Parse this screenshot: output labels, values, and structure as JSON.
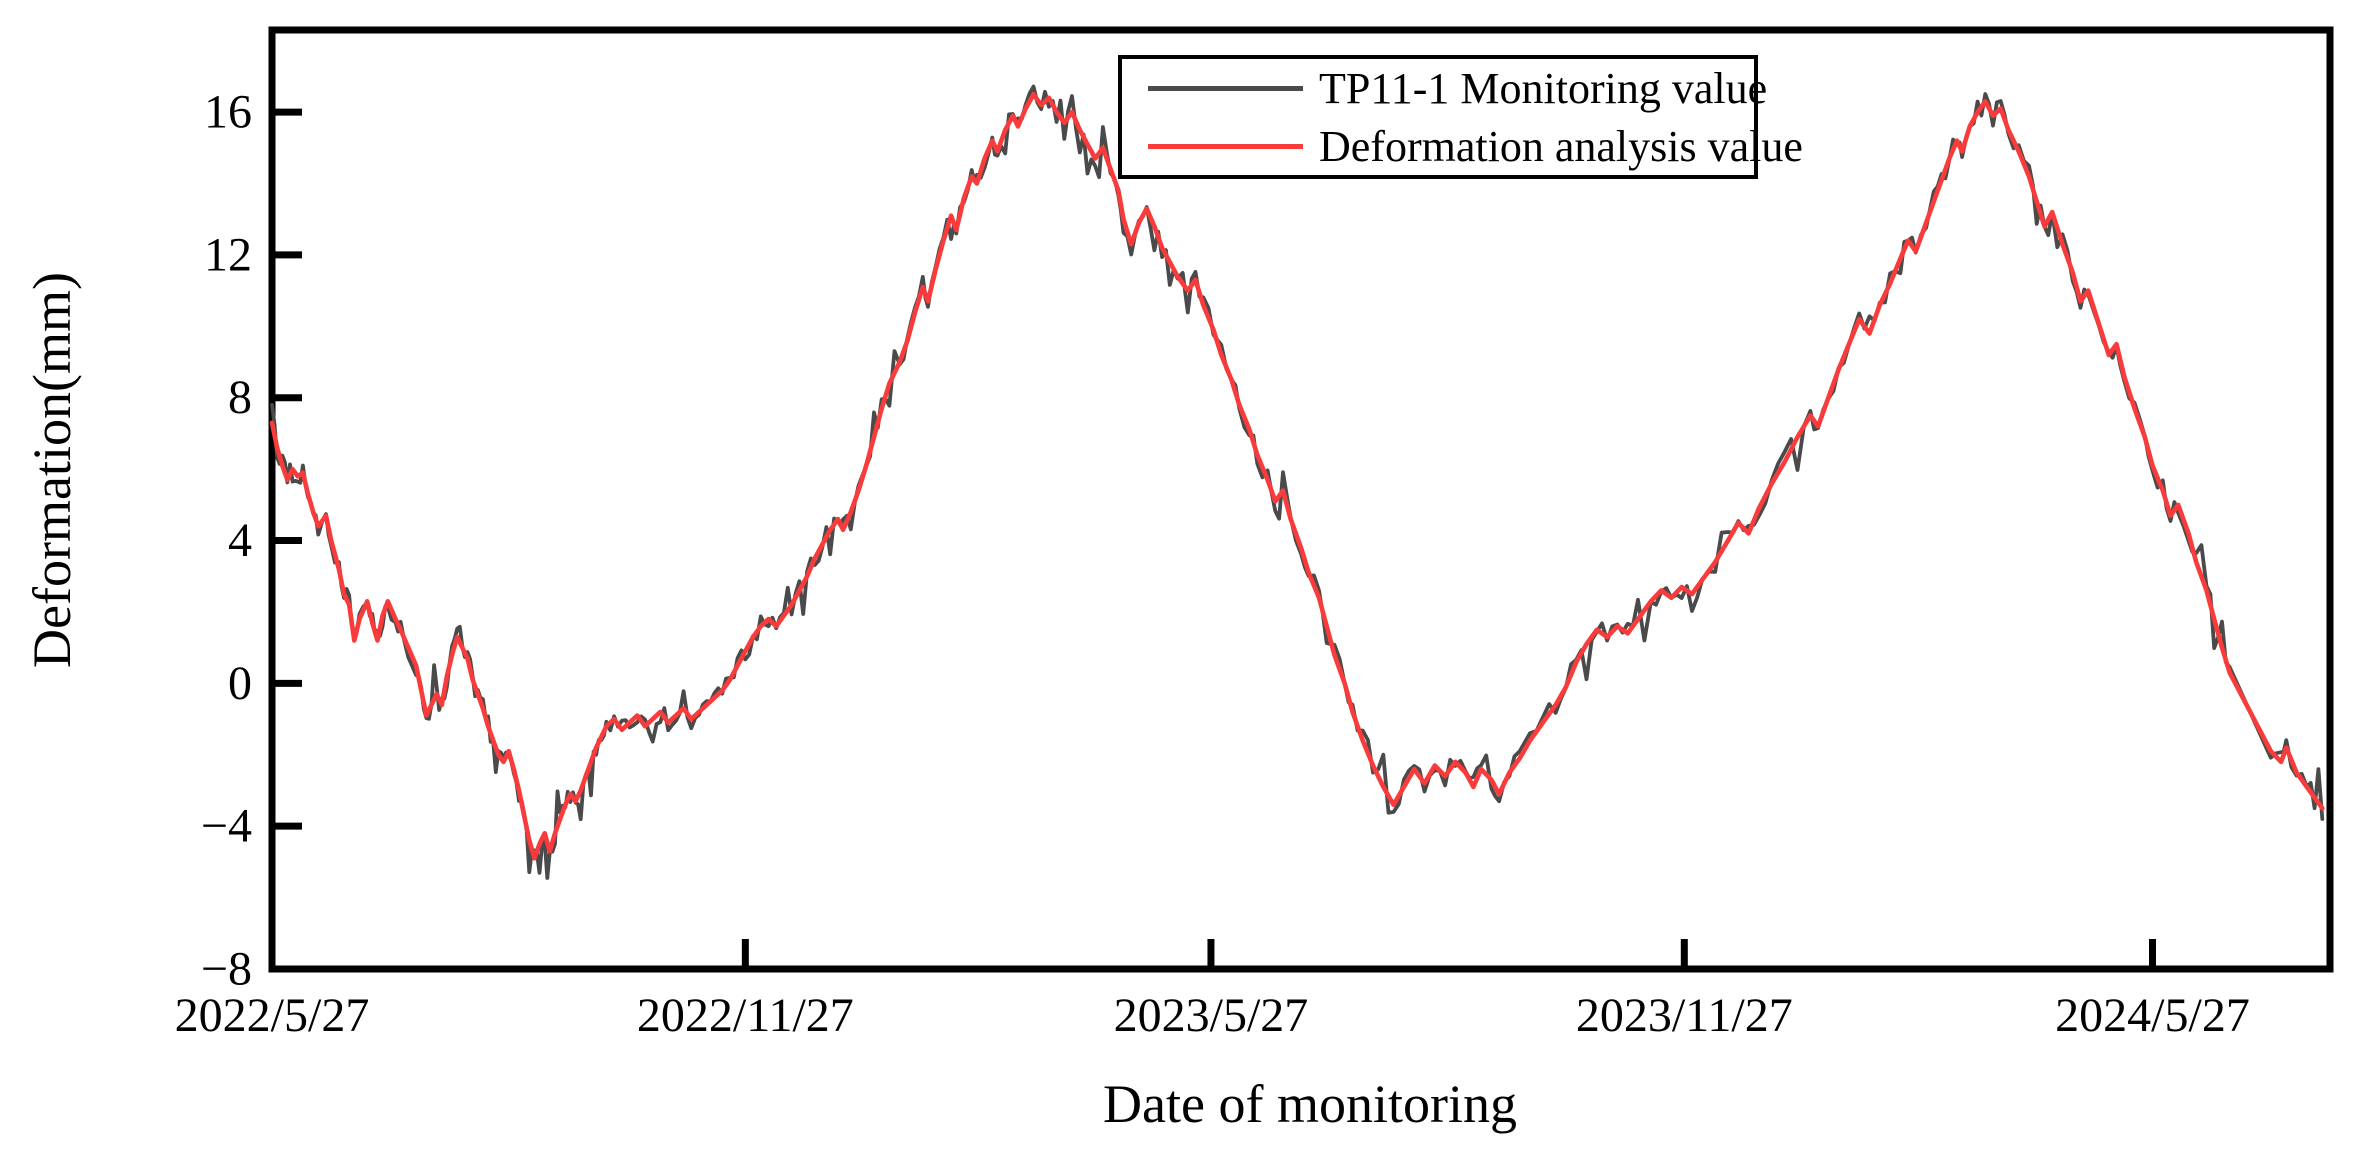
{
  "chart_data": {
    "type": "line",
    "title": "",
    "xlabel": "Date of monitoring",
    "ylabel": "Deformation(mm)",
    "grid": "off",
    "frame": "full-box",
    "x_axis": {
      "start_date": "2022/5/27",
      "tick_labels": [
        "2022/5/27",
        "2022/11/27",
        "2023/5/27",
        "2023/11/27",
        "2024/5/27"
      ],
      "tick_days": [
        0,
        184,
        365,
        549,
        731
      ],
      "domain_days": [
        0,
        800
      ]
    },
    "y_axis": {
      "tick_labels": [
        "16",
        "12",
        "8",
        "4",
        "0",
        "−4",
        "−8"
      ],
      "tick_values": [
        16,
        12,
        8,
        4,
        0,
        -4,
        -8
      ],
      "range": [
        -8,
        18.3
      ]
    },
    "legend": {
      "position": "top-center-inside",
      "entries": [
        {
          "label": "TP11-1 Monitoring value",
          "color": "#4a4a4a"
        },
        {
          "label": "Deformation analysis value",
          "color": "#f93b3b"
        }
      ]
    },
    "series": [
      {
        "name": "TP11-1 Monitoring value",
        "color": "#4a4a4a",
        "line_width": 3.8,
        "derived": {
          "from": "Deformation analysis value",
          "noise_amplitude_mm": 0.3,
          "spike_probability": 0.12,
          "spike_extra_mm": 0.55,
          "seed": 20220527,
          "upsample_max_gap_days": 5
        }
      },
      {
        "name": "Deformation analysis value",
        "color": "#f93b3b",
        "line_width": 4.6,
        "points": [
          [
            0,
            7.3
          ],
          [
            2,
            6.6
          ],
          [
            4,
            6.1
          ],
          [
            6,
            5.7
          ],
          [
            8,
            6.0
          ],
          [
            10,
            5.8
          ],
          [
            12,
            5.9
          ],
          [
            14,
            5.3
          ],
          [
            16,
            4.8
          ],
          [
            18,
            4.4
          ],
          [
            21,
            4.7
          ],
          [
            23,
            4.0
          ],
          [
            26,
            3.2
          ],
          [
            28,
            2.5
          ],
          [
            30,
            2.2
          ],
          [
            32,
            1.2
          ],
          [
            34,
            1.8
          ],
          [
            37,
            2.3
          ],
          [
            39,
            1.7
          ],
          [
            41,
            1.2
          ],
          [
            43,
            1.9
          ],
          [
            45,
            2.3
          ],
          [
            48,
            1.8
          ],
          [
            50,
            1.5
          ],
          [
            53,
            1.0
          ],
          [
            56,
            0.5
          ],
          [
            58,
            -0.2
          ],
          [
            60,
            -0.9
          ],
          [
            62,
            -0.6
          ],
          [
            64,
            -0.3
          ],
          [
            66,
            -0.6
          ],
          [
            68,
            0.2
          ],
          [
            70,
            0.8
          ],
          [
            72,
            1.3
          ],
          [
            74,
            1.0
          ],
          [
            76,
            0.7
          ],
          [
            78,
            0.1
          ],
          [
            80,
            -0.3
          ],
          [
            82,
            -0.7
          ],
          [
            84,
            -1.2
          ],
          [
            86,
            -1.6
          ],
          [
            88,
            -2.0
          ],
          [
            90,
            -2.2
          ],
          [
            92,
            -1.9
          ],
          [
            94,
            -2.4
          ],
          [
            96,
            -3.0
          ],
          [
            98,
            -3.7
          ],
          [
            100,
            -4.4
          ],
          [
            102,
            -4.9
          ],
          [
            104,
            -4.5
          ],
          [
            106,
            -4.2
          ],
          [
            108,
            -4.7
          ],
          [
            110,
            -4.2
          ],
          [
            112,
            -3.8
          ],
          [
            114,
            -3.4
          ],
          [
            116,
            -3.1
          ],
          [
            118,
            -3.3
          ],
          [
            120,
            -3.0
          ],
          [
            122,
            -2.6
          ],
          [
            124,
            -2.2
          ],
          [
            126,
            -1.8
          ],
          [
            128,
            -1.5
          ],
          [
            130,
            -1.2
          ],
          [
            133,
            -1.0
          ],
          [
            136,
            -1.3
          ],
          [
            139,
            -1.1
          ],
          [
            142,
            -0.9
          ],
          [
            145,
            -1.2
          ],
          [
            148,
            -1.0
          ],
          [
            151,
            -0.8
          ],
          [
            154,
            -1.1
          ],
          [
            157,
            -0.9
          ],
          [
            160,
            -0.7
          ],
          [
            163,
            -1.0
          ],
          [
            166,
            -0.8
          ],
          [
            169,
            -0.6
          ],
          [
            172,
            -0.4
          ],
          [
            175,
            -0.2
          ],
          [
            178,
            0.1
          ],
          [
            181,
            0.5
          ],
          [
            184,
            0.9
          ],
          [
            187,
            1.3
          ],
          [
            190,
            1.6
          ],
          [
            193,
            1.8
          ],
          [
            196,
            1.6
          ],
          [
            199,
            1.9
          ],
          [
            202,
            2.2
          ],
          [
            205,
            2.6
          ],
          [
            208,
            3.0
          ],
          [
            211,
            3.5
          ],
          [
            214,
            3.9
          ],
          [
            217,
            4.3
          ],
          [
            220,
            4.6
          ],
          [
            222,
            4.3
          ],
          [
            225,
            4.8
          ],
          [
            228,
            5.4
          ],
          [
            231,
            6.1
          ],
          [
            234,
            6.9
          ],
          [
            237,
            7.7
          ],
          [
            240,
            8.4
          ],
          [
            244,
            9.0
          ],
          [
            247,
            9.6
          ],
          [
            250,
            10.4
          ],
          [
            253,
            11.1
          ],
          [
            255,
            10.7
          ],
          [
            258,
            11.6
          ],
          [
            261,
            12.4
          ],
          [
            264,
            13.1
          ],
          [
            266,
            12.7
          ],
          [
            269,
            13.6
          ],
          [
            272,
            14.2
          ],
          [
            274,
            14.0
          ],
          [
            277,
            14.7
          ],
          [
            280,
            15.2
          ],
          [
            282,
            14.9
          ],
          [
            285,
            15.5
          ],
          [
            288,
            15.9
          ],
          [
            290,
            15.6
          ],
          [
            293,
            16.1
          ],
          [
            296,
            16.5
          ],
          [
            299,
            16.2
          ],
          [
            302,
            16.4
          ],
          [
            305,
            16.0
          ],
          [
            308,
            15.7
          ],
          [
            311,
            16.0
          ],
          [
            314,
            15.5
          ],
          [
            317,
            15.1
          ],
          [
            320,
            14.7
          ],
          [
            323,
            15.0
          ],
          [
            326,
            14.4
          ],
          [
            329,
            13.8
          ],
          [
            331,
            13.0
          ],
          [
            334,
            12.3
          ],
          [
            337,
            12.9
          ],
          [
            340,
            13.3
          ],
          [
            343,
            12.8
          ],
          [
            346,
            12.2
          ],
          [
            349,
            11.8
          ],
          [
            352,
            11.4
          ],
          [
            356,
            11.0
          ],
          [
            359,
            11.3
          ],
          [
            362,
            10.6
          ],
          [
            366,
            9.9
          ],
          [
            369,
            9.2
          ],
          [
            373,
            8.5
          ],
          [
            376,
            7.8
          ],
          [
            380,
            7.1
          ],
          [
            383,
            6.4
          ],
          [
            387,
            5.7
          ],
          [
            390,
            5.1
          ],
          [
            393,
            5.4
          ],
          [
            396,
            4.6
          ],
          [
            400,
            3.8
          ],
          [
            403,
            3.1
          ],
          [
            407,
            2.4
          ],
          [
            410,
            1.6
          ],
          [
            413,
            0.8
          ],
          [
            417,
            0.0
          ],
          [
            420,
            -0.8
          ],
          [
            424,
            -1.6
          ],
          [
            428,
            -2.3
          ],
          [
            432,
            -2.9
          ],
          [
            436,
            -3.4
          ],
          [
            440,
            -2.9
          ],
          [
            444,
            -2.4
          ],
          [
            448,
            -2.8
          ],
          [
            452,
            -2.3
          ],
          [
            456,
            -2.6
          ],
          [
            460,
            -2.2
          ],
          [
            464,
            -2.5
          ],
          [
            467,
            -2.9
          ],
          [
            470,
            -2.4
          ],
          [
            474,
            -2.7
          ],
          [
            477,
            -3.1
          ],
          [
            481,
            -2.5
          ],
          [
            485,
            -2.1
          ],
          [
            489,
            -1.6
          ],
          [
            494,
            -1.1
          ],
          [
            499,
            -0.6
          ],
          [
            503,
            -0.1
          ],
          [
            507,
            0.6
          ],
          [
            511,
            1.1
          ],
          [
            515,
            1.5
          ],
          [
            519,
            1.3
          ],
          [
            523,
            1.6
          ],
          [
            527,
            1.4
          ],
          [
            531,
            1.8
          ],
          [
            536,
            2.3
          ],
          [
            540,
            2.6
          ],
          [
            544,
            2.4
          ],
          [
            548,
            2.7
          ],
          [
            552,
            2.5
          ],
          [
            556,
            2.9
          ],
          [
            561,
            3.4
          ],
          [
            566,
            4.0
          ],
          [
            570,
            4.5
          ],
          [
            574,
            4.2
          ],
          [
            578,
            4.9
          ],
          [
            583,
            5.6
          ],
          [
            588,
            6.2
          ],
          [
            593,
            6.9
          ],
          [
            598,
            7.5
          ],
          [
            601,
            7.2
          ],
          [
            605,
            8.0
          ],
          [
            609,
            8.8
          ],
          [
            613,
            9.5
          ],
          [
            617,
            10.2
          ],
          [
            621,
            9.8
          ],
          [
            625,
            10.6
          ],
          [
            629,
            11.2
          ],
          [
            633,
            11.9
          ],
          [
            636,
            12.4
          ],
          [
            639,
            12.1
          ],
          [
            643,
            12.9
          ],
          [
            646,
            13.5
          ],
          [
            649,
            14.1
          ],
          [
            652,
            14.7
          ],
          [
            655,
            15.2
          ],
          [
            657,
            14.9
          ],
          [
            660,
            15.6
          ],
          [
            663,
            16.0
          ],
          [
            666,
            16.3
          ],
          [
            669,
            15.9
          ],
          [
            672,
            16.1
          ],
          [
            675,
            15.5
          ],
          [
            679,
            14.9
          ],
          [
            683,
            14.2
          ],
          [
            686,
            13.5
          ],
          [
            689,
            12.8
          ],
          [
            692,
            13.2
          ],
          [
            696,
            12.3
          ],
          [
            700,
            11.5
          ],
          [
            703,
            10.7
          ],
          [
            706,
            11.0
          ],
          [
            710,
            10.1
          ],
          [
            714,
            9.2
          ],
          [
            717,
            9.5
          ],
          [
            720,
            8.6
          ],
          [
            724,
            7.7
          ],
          [
            728,
            6.9
          ],
          [
            731,
            6.1
          ],
          [
            735,
            5.4
          ],
          [
            738,
            4.7
          ],
          [
            741,
            5.0
          ],
          [
            745,
            4.2
          ],
          [
            748,
            3.4
          ],
          [
            752,
            2.6
          ],
          [
            755,
            1.8
          ],
          [
            758,
            1.0
          ],
          [
            761,
            0.3
          ],
          [
            777,
            -1.9
          ],
          [
            781,
            -2.2
          ],
          [
            783,
            -1.8
          ],
          [
            787,
            -2.5
          ],
          [
            791,
            -2.9
          ],
          [
            794,
            -3.2
          ],
          [
            797,
            -3.5
          ]
        ]
      }
    ]
  }
}
